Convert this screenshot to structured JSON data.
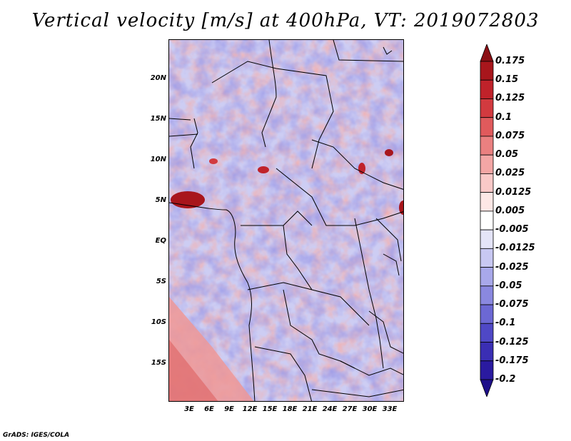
{
  "title": "Vertical velocity [m/s] at 400hPa, VT: 2019072803",
  "map": {
    "lat_labels": [
      "20N",
      "15N",
      "10N",
      "5N",
      "EQ",
      "5S",
      "10S",
      "15S"
    ],
    "lon_labels": [
      "3E",
      "6E",
      "9E",
      "12E",
      "15E",
      "18E",
      "21E",
      "24E",
      "27E",
      "30E",
      "33E"
    ]
  },
  "colorbar": {
    "labels": [
      "0.175",
      "0.15",
      "0.125",
      "0.1",
      "0.075",
      "0.05",
      "0.025",
      "0.0125",
      "0.005",
      "-0.005",
      "-0.0125",
      "-0.025",
      "-0.05",
      "-0.075",
      "-0.1",
      "-0.125",
      "-0.175",
      "-0.2"
    ],
    "colors": [
      "#8b0f14",
      "#a8161c",
      "#c0222a",
      "#d23a3f",
      "#e05a5c",
      "#ea8080",
      "#f3a6a5",
      "#f9c9c8",
      "#fde8e6",
      "#ffffff",
      "#e4e4f8",
      "#c8c8f2",
      "#a8a8ea",
      "#8a88e0",
      "#6c68d4",
      "#4f48c6",
      "#3a2eb4",
      "#2a1aa0",
      "#1e0f8a"
    ]
  },
  "footer": "GrADS: IGES/COLA"
}
